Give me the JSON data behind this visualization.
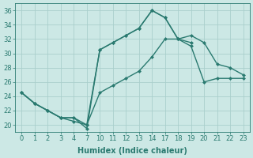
{
  "xlabel": "Humidex (Indice chaleur)",
  "background_color": "#cce8e5",
  "grid_color": "#aacfcc",
  "line_color": "#2a7a70",
  "xlim": [
    -0.5,
    17.5
  ],
  "ylim": [
    19.0,
    37.0
  ],
  "xtick_positions": [
    0,
    1,
    2,
    3,
    4,
    5,
    6,
    7,
    8,
    9,
    10,
    11,
    12,
    13,
    14,
    15,
    16,
    17
  ],
  "xtick_labels": [
    "0",
    "1",
    "2",
    "3",
    "4",
    "7",
    "10",
    "11",
    "12",
    "13",
    "14",
    "17",
    "18",
    "19",
    "20",
    "21",
    "22",
    "23"
  ],
  "yticks": [
    20,
    22,
    24,
    26,
    28,
    30,
    32,
    34,
    36
  ],
  "line1_x": [
    0,
    1,
    2,
    3,
    4,
    5,
    6,
    7,
    8,
    9,
    10,
    11,
    12,
    13,
    14,
    15,
    16,
    17
  ],
  "line1_y": [
    24.5,
    23.0,
    22.0,
    21.0,
    20.5,
    20.0,
    30.5,
    31.5,
    32.5,
    33.5,
    36.0,
    35.0,
    32.0,
    32.5,
    31.5,
    28.5,
    28.0,
    27.0
  ],
  "line2_x": [
    0,
    1,
    2,
    3,
    4,
    5,
    6,
    7,
    8,
    9,
    10,
    11,
    12,
    13
  ],
  "line2_y": [
    24.5,
    23.0,
    22.0,
    21.0,
    21.0,
    19.5,
    30.5,
    31.5,
    32.5,
    33.5,
    36.0,
    35.0,
    32.0,
    31.5
  ],
  "line3_x": [
    0,
    1,
    2,
    3,
    4,
    5,
    6,
    7,
    8,
    9,
    10,
    11,
    12,
    13,
    14,
    15,
    16,
    17
  ],
  "line3_y": [
    24.5,
    23.0,
    22.0,
    21.0,
    21.0,
    20.0,
    24.5,
    25.5,
    26.5,
    27.5,
    29.5,
    32.0,
    32.0,
    31.0,
    26.0,
    26.5,
    26.5,
    26.5
  ],
  "marker_size": 2.5,
  "linewidth": 1.0,
  "xlabel_fontsize": 7,
  "tick_fontsize": 6
}
